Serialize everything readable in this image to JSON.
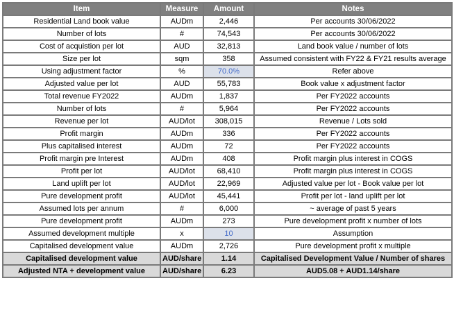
{
  "table": {
    "headers": {
      "item": "Item",
      "measure": "Measure",
      "amount": "Amount",
      "notes": "Notes"
    },
    "rows": [
      {
        "item": "Residential Land book value",
        "measure": "AUDm",
        "amount": "2,446",
        "notes": "Per accounts 30/06/2022",
        "row_style": "normal",
        "amount_style": "normal"
      },
      {
        "item": "Number of lots",
        "measure": "#",
        "amount": "74,543",
        "notes": "Per accounts 30/06/2022",
        "row_style": "normal",
        "amount_style": "normal"
      },
      {
        "item": "Cost of acquistion per lot",
        "measure": "AUD",
        "amount": "32,813",
        "notes": "Land book value / number of lots",
        "row_style": "normal",
        "amount_style": "normal"
      },
      {
        "item": "Size per lot",
        "measure": "sqm",
        "amount": "358",
        "notes": "Assumed consistent with FY22 & FY21 results average",
        "row_style": "normal",
        "amount_style": "normal"
      },
      {
        "item": "Using adjustment factor",
        "measure": "%",
        "amount": "70.0%",
        "notes": "Refer above",
        "row_style": "normal",
        "amount_style": "input"
      },
      {
        "item": "Adjusted value per lot",
        "measure": "AUD",
        "amount": "55,783",
        "notes": "Book value x adjustment factor",
        "row_style": "normal",
        "amount_style": "normal"
      },
      {
        "item": "Total revenue FY2022",
        "measure": "AUDm",
        "amount": "1,837",
        "notes": "Per FY2022 accounts",
        "row_style": "normal",
        "amount_style": "normal"
      },
      {
        "item": "Number of lots",
        "measure": "#",
        "amount": "5,964",
        "notes": "Per FY2022 accounts",
        "row_style": "normal",
        "amount_style": "normal"
      },
      {
        "item": "Revenue per lot",
        "measure": "AUD/lot",
        "amount": "308,015",
        "notes": "Revenue / Lots sold",
        "row_style": "normal",
        "amount_style": "normal"
      },
      {
        "item": "Profit margin",
        "measure": "AUDm",
        "amount": "336",
        "notes": "Per FY2022 accounts",
        "row_style": "normal",
        "amount_style": "normal"
      },
      {
        "item": "Plus capitalised interest",
        "measure": "AUDm",
        "amount": "72",
        "notes": "Per FY2022 accounts",
        "row_style": "normal",
        "amount_style": "normal"
      },
      {
        "item": "Profit margin pre Interest",
        "measure": "AUDm",
        "amount": "408",
        "notes": "Profit margin plus interest in COGS",
        "row_style": "normal",
        "amount_style": "normal"
      },
      {
        "item": "Profit per lot",
        "measure": "AUD/lot",
        "amount": "68,410",
        "notes": "Profit margin plus interest in COGS",
        "row_style": "normal",
        "amount_style": "normal"
      },
      {
        "item": "Land uplift per lot",
        "measure": "AUD/lot",
        "amount": "22,969",
        "notes": "Adjusted value per lot - Book value per lot",
        "row_style": "normal",
        "amount_style": "normal"
      },
      {
        "item": "Pure development profit",
        "measure": "AUD/lot",
        "amount": "45,441",
        "notes": "Profit per lot - land uplift per lot",
        "row_style": "normal",
        "amount_style": "normal"
      },
      {
        "item": "Assumed lots per annum",
        "measure": "#",
        "amount": "6,000",
        "notes": "~ average of past 5 years",
        "row_style": "normal",
        "amount_style": "normal"
      },
      {
        "item": "Pure development profit",
        "measure": "AUDm",
        "amount": "273",
        "notes": "Pure development profit x number of lots",
        "row_style": "normal",
        "amount_style": "normal"
      },
      {
        "item": "Assumed development multiple",
        "measure": "x",
        "amount": "10",
        "notes": "Assumption",
        "row_style": "normal",
        "amount_style": "input"
      },
      {
        "item": "Capitalised development value",
        "measure": "AUDm",
        "amount": "2,726",
        "notes": "Pure development profit x multiple",
        "row_style": "normal",
        "amount_style": "normal"
      },
      {
        "item": "Capitalised development value",
        "measure": "AUD/share",
        "amount": "1.14",
        "notes": "Capitalised Development Value / Number of shares",
        "row_style": "total",
        "amount_style": "normal"
      },
      {
        "item": "Adjusted NTA + development value",
        "measure": "AUD/share",
        "amount": "6.23",
        "notes": "AUD5.08 + AUD1.14/share",
        "row_style": "total",
        "amount_style": "normal"
      }
    ],
    "colors": {
      "header_bg": "#808080",
      "header_text": "#ffffff",
      "body_bg": "#ffffff",
      "body_text": "#000000",
      "input_cell_bg": "#dce1ea",
      "input_cell_text": "#4169c8",
      "total_row_bg": "#d9d9d9",
      "border": "#7a7a7a"
    }
  }
}
